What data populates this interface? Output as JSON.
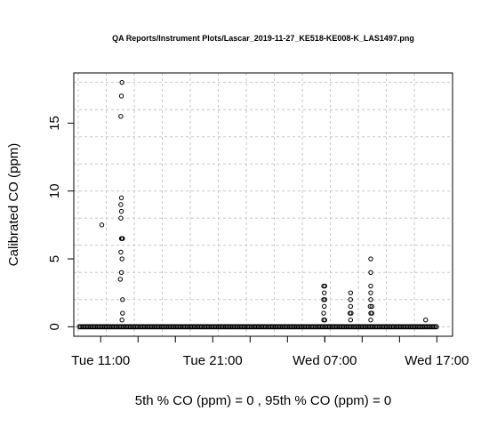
{
  "chart_data": {
    "type": "scatter",
    "title": "QA Reports/Instrument Plots/Lascar_2019-11-27_KE518-KE008-K_LAS1497.png",
    "xlabel": "5th % CO (ppm) =  0 , 95th % CO (ppm)  =  0",
    "ylabel": "Calibrated CO (ppm)",
    "x_axis_type": "time",
    "x_ticks": [
      {
        "hours": 11,
        "label": "Tue 11:00"
      },
      {
        "hours": 21,
        "label": "Tue 21:00"
      },
      {
        "hours": 31,
        "label": "Wed 07:00"
      },
      {
        "hours": 41,
        "label": "Wed 17:00"
      }
    ],
    "xlim_hours": [
      8.6,
      42.4
    ],
    "ylim": [
      -0.7,
      18.7
    ],
    "y_ticks": [
      0,
      5,
      10,
      15
    ],
    "grid": true,
    "marker": "open-circle",
    "baseline": {
      "x_start_hours": 9.1,
      "x_end_hours": 41.0,
      "value": 0
    },
    "points": [
      {
        "x": 11.1,
        "y": 7.5
      },
      {
        "x": 12.9,
        "y": 18.0
      },
      {
        "x": 12.85,
        "y": 17.0
      },
      {
        "x": 12.8,
        "y": 15.5
      },
      {
        "x": 12.85,
        "y": 9.5
      },
      {
        "x": 12.8,
        "y": 9.0
      },
      {
        "x": 12.85,
        "y": 8.5
      },
      {
        "x": 12.8,
        "y": 8.0
      },
      {
        "x": 12.85,
        "y": 6.5
      },
      {
        "x": 12.95,
        "y": 6.5
      },
      {
        "x": 12.9,
        "y": 6.5
      },
      {
        "x": 12.8,
        "y": 5.5
      },
      {
        "x": 12.9,
        "y": 5.0
      },
      {
        "x": 12.85,
        "y": 4.0
      },
      {
        "x": 12.75,
        "y": 3.5
      },
      {
        "x": 12.95,
        "y": 2.0
      },
      {
        "x": 12.95,
        "y": 1.0
      },
      {
        "x": 12.9,
        "y": 0.5
      },
      {
        "x": 30.9,
        "y": 3.0
      },
      {
        "x": 31.0,
        "y": 3.0
      },
      {
        "x": 30.95,
        "y": 2.5
      },
      {
        "x": 30.9,
        "y": 2.0
      },
      {
        "x": 31.0,
        "y": 2.0
      },
      {
        "x": 30.95,
        "y": 1.5
      },
      {
        "x": 30.9,
        "y": 1.0
      },
      {
        "x": 30.9,
        "y": 0.5
      },
      {
        "x": 31.0,
        "y": 0.5
      },
      {
        "x": 33.3,
        "y": 2.5
      },
      {
        "x": 33.3,
        "y": 2.0
      },
      {
        "x": 33.3,
        "y": 1.5
      },
      {
        "x": 33.25,
        "y": 1.0
      },
      {
        "x": 33.35,
        "y": 1.0
      },
      {
        "x": 33.3,
        "y": 0.5
      },
      {
        "x": 35.1,
        "y": 5.0
      },
      {
        "x": 35.1,
        "y": 4.0
      },
      {
        "x": 35.1,
        "y": 3.0
      },
      {
        "x": 35.1,
        "y": 2.5
      },
      {
        "x": 35.1,
        "y": 2.0
      },
      {
        "x": 35.05,
        "y": 1.5
      },
      {
        "x": 35.2,
        "y": 1.5
      },
      {
        "x": 35.1,
        "y": 1.0
      },
      {
        "x": 35.2,
        "y": 1.0
      },
      {
        "x": 35.1,
        "y": 0.5
      },
      {
        "x": 40.0,
        "y": 0.5
      }
    ]
  }
}
